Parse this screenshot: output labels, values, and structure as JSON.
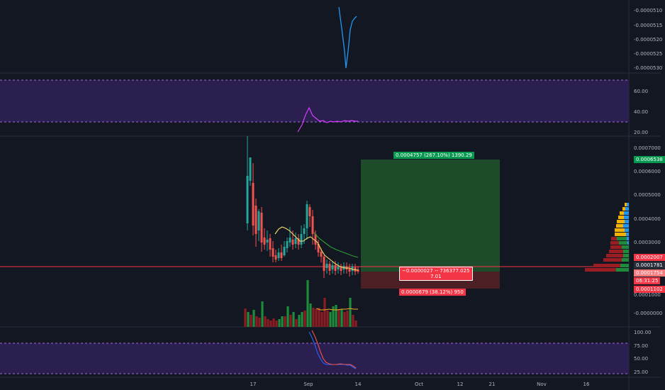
{
  "time_axis": {
    "labels": [
      "17",
      "Sep",
      "14",
      "Oct",
      "12",
      "21",
      "Nov",
      "16"
    ]
  },
  "pane1": {
    "ticks": [
      "-0.0000510",
      "-0.0000515",
      "-0.0000520",
      "-0.0000525",
      "-0.0000530"
    ]
  },
  "pane2": {
    "ticks": [
      "60.00",
      "40.00",
      "20.00"
    ]
  },
  "pane3": {
    "ticks": [
      "0.0007000",
      "0.0006000",
      "0.0005000",
      "0.0004000",
      "0.0003000",
      "0.0001000",
      "-0.0000000"
    ],
    "badges": {
      "target": "0.0006538",
      "p2007": "0.0002007",
      "p1781": "0.0001781",
      "p1754": "0.0001754",
      "countdown": "06:31:25",
      "stop": "0.0001102"
    },
    "position": {
      "profit_label": "0.0004757 (267.10%) 1390.29",
      "center_line1": "−0.0000027 -- 736377.025",
      "center_line2": "7.01",
      "stop_label": "0.0000679 (38.12%) 950"
    }
  },
  "pane4": {
    "ticks": [
      "100.00",
      "75.00",
      "50.00",
      "25.00"
    ]
  },
  "colors": {
    "background": "#131722",
    "up": "#26a69a",
    "down": "#ef5350",
    "profit_zone": "#1e4b2a",
    "loss_zone": "#4c1f25",
    "indicator_band": "#2b1f4f",
    "price_line": "#f23645"
  }
}
